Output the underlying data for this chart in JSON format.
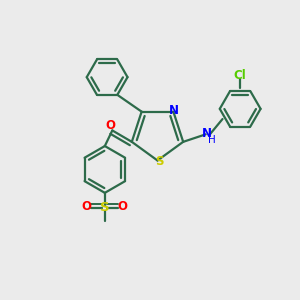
{
  "background_color": "#ebebeb",
  "bond_color": "#2d6b4a",
  "atom_colors": {
    "O": "#ff0000",
    "N": "#0000ff",
    "S_thiazole": "#cccc00",
    "S_sulfonyl": "#cccc00",
    "Cl": "#55cc00",
    "H": "#0000ff",
    "C": "#2d6b4a"
  },
  "figsize": [
    3.0,
    3.0
  ],
  "dpi": 100
}
